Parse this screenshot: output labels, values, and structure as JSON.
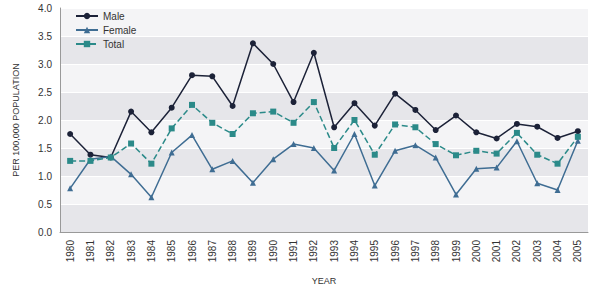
{
  "chart_data": {
    "type": "line",
    "x_label": "YEAR",
    "y_label": "PER 100,000 POPULATION",
    "categories": [
      "1980",
      "1981",
      "1982",
      "1983",
      "1984",
      "1985",
      "1986",
      "1987",
      "1988",
      "1989",
      "1990",
      "1991",
      "1992",
      "1993",
      "1994",
      "1995",
      "1996",
      "1997",
      "1998",
      "1999",
      "2000",
      "2001",
      "2002",
      "2003",
      "2004",
      "2005"
    ],
    "series": [
      {
        "name": "Male",
        "color": "#1c2238",
        "marker": "circle",
        "line_style": "solid",
        "values": [
          1.75,
          1.38,
          1.33,
          2.15,
          1.78,
          2.22,
          2.8,
          2.78,
          2.25,
          3.37,
          3.0,
          2.32,
          3.2,
          1.87,
          2.3,
          1.9,
          2.47,
          2.18,
          1.82,
          2.08,
          1.78,
          1.67,
          1.93,
          1.88,
          1.68,
          1.8
        ]
      },
      {
        "name": "Female",
        "color": "#3f6d93",
        "marker": "triangle",
        "line_style": "solid",
        "values": [
          0.78,
          1.3,
          1.35,
          1.03,
          0.62,
          1.42,
          1.73,
          1.12,
          1.27,
          0.88,
          1.3,
          1.57,
          1.5,
          1.1,
          1.75,
          0.83,
          1.45,
          1.55,
          1.33,
          0.67,
          1.13,
          1.15,
          1.62,
          0.87,
          0.75,
          1.63
        ]
      },
      {
        "name": "Total",
        "color": "#2b8a89",
        "marker": "square",
        "line_style": "dashed",
        "values": [
          1.27,
          1.27,
          1.33,
          1.58,
          1.22,
          1.85,
          2.27,
          1.95,
          1.75,
          2.12,
          2.15,
          1.95,
          2.32,
          1.5,
          2.0,
          1.38,
          1.92,
          1.87,
          1.57,
          1.37,
          1.45,
          1.4,
          1.77,
          1.38,
          1.22,
          1.7
        ]
      }
    ],
    "ylim": [
      0,
      4
    ],
    "yticks": [
      {
        "value": 0,
        "label": "0.0"
      },
      {
        "value": 0.5,
        "label": "0.5"
      },
      {
        "value": 1,
        "label": "1.0"
      },
      {
        "value": 1.5,
        "label": "1.5"
      },
      {
        "value": 2,
        "label": "2.0"
      },
      {
        "value": 2.5,
        "label": "2.5"
      },
      {
        "value": 3,
        "label": "3.0"
      },
      {
        "value": 3.5,
        "label": "3.5"
      },
      {
        "value": 4,
        "label": "4.0"
      }
    ],
    "grid": true,
    "legend": "top-left"
  }
}
